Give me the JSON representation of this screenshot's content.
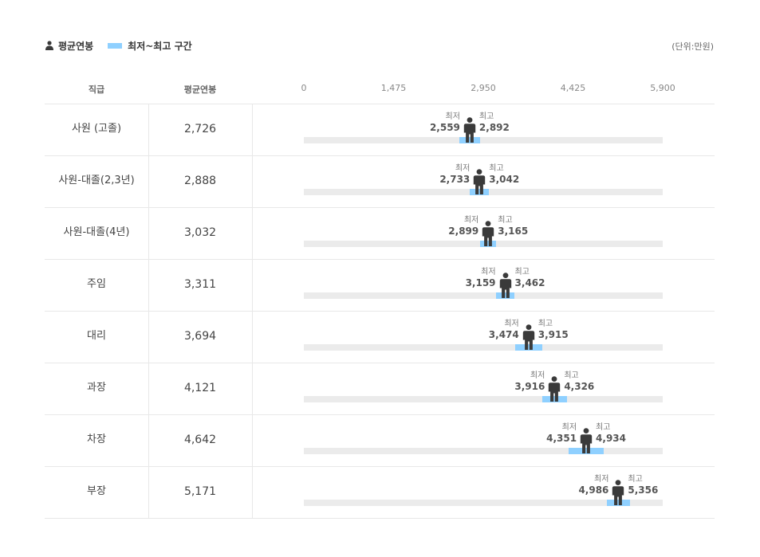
{
  "legend": {
    "avg_label": "평균연봉",
    "range_label": "최저~최고 구간"
  },
  "unit_label": "(단위:만원)",
  "header": {
    "position": "직급",
    "avg": "평균연봉"
  },
  "colors": {
    "range": "#8fd0ff",
    "track": "#ebebeb",
    "icon": "#3a3a3a"
  },
  "chart_data": {
    "type": "bar",
    "min_caption": "최저",
    "max_caption": "최고",
    "axis_ticks": [
      "0",
      "1,475",
      "2,950",
      "4,425",
      "5,900"
    ],
    "xlim": [
      0,
      5900
    ],
    "categories": [
      "사원 (고졸)",
      "사원-대졸(2,3년)",
      "사원-대졸(4년)",
      "주임",
      "대리",
      "과장",
      "차장",
      "부장"
    ],
    "avg": [
      2726,
      2888,
      3032,
      3311,
      3694,
      4121,
      4642,
      5171
    ],
    "avg_labels": [
      "2,726",
      "2,888",
      "3,032",
      "3,311",
      "3,694",
      "4,121",
      "4,642",
      "5,171"
    ],
    "min": [
      2559,
      2733,
      2899,
      3159,
      3474,
      3916,
      4351,
      4986
    ],
    "min_labels": [
      "2,559",
      "2,733",
      "2,899",
      "3,159",
      "3,474",
      "3,916",
      "4,351",
      "4,986"
    ],
    "max": [
      2892,
      3042,
      3165,
      3462,
      3915,
      4326,
      4934,
      5356
    ],
    "max_labels": [
      "2,892",
      "3,042",
      "3,165",
      "3,462",
      "3,915",
      "4,326",
      "4,934",
      "5,356"
    ]
  }
}
